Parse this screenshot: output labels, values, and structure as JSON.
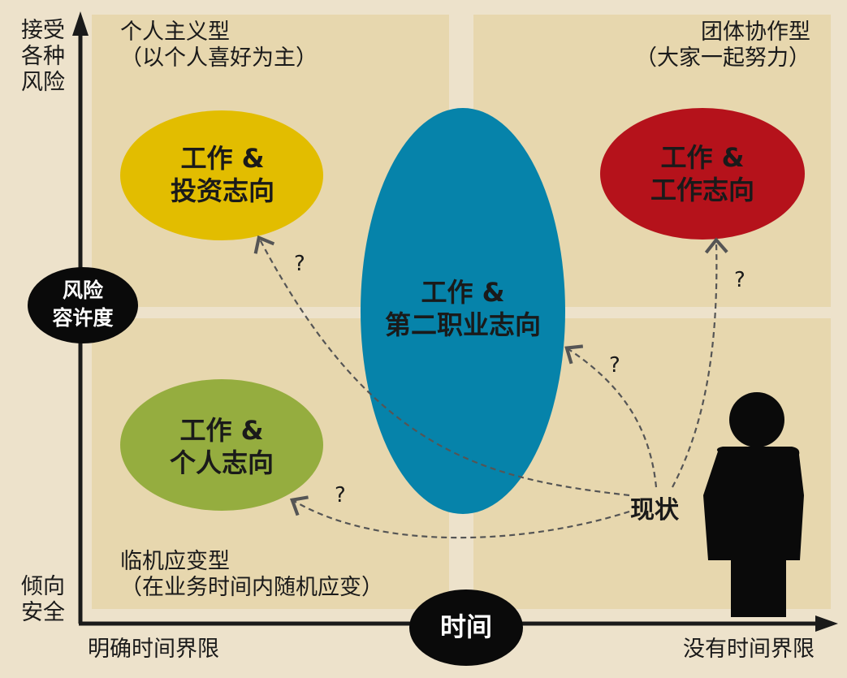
{
  "axes": {
    "y_top": "接受\n各种\n风险",
    "y_bottom": "倾向\n安全",
    "y_title": "风险\n容许度",
    "x_left": "明确时间界限",
    "x_right": "没有时间界限",
    "x_title": "时间"
  },
  "quadrants": {
    "top_left": "个人主义型\n（以个人喜好为主）",
    "top_right": "团体协作型\n（大家一起努力）",
    "bottom_left": "临机应变型\n（在业务时间内随机应变）"
  },
  "ovals": {
    "yellow": {
      "text": "工作 &\n投资志向",
      "color": "#e2bd00"
    },
    "red": {
      "text": "工作 &\n工作志向",
      "color": "#b5121b"
    },
    "green": {
      "text": "工作 &\n个人志向",
      "color": "#95ad3f"
    },
    "blue": {
      "text": "工作 &\n第二职业志向",
      "color": "#0683aa"
    }
  },
  "current": "现状",
  "question_mark": "?",
  "icons": {
    "person": "person-silhouette-icon"
  }
}
